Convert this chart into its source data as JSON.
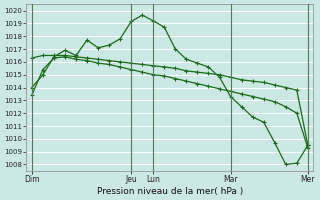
{
  "xlabel": "Pression niveau de la mer( hPa )",
  "bg_color": "#cce8e4",
  "grid_color": "#b0d8d4",
  "vline_color": "#557755",
  "line_color": "#1a6b1a",
  "ylim": [
    1007.5,
    1020.5
  ],
  "yticks": [
    1008,
    1009,
    1010,
    1011,
    1012,
    1013,
    1014,
    1015,
    1016,
    1017,
    1018,
    1019,
    1020
  ],
  "xtick_labels": [
    "Dim",
    "Jeu",
    "Lun",
    "Mar",
    "Mer"
  ],
  "xtick_positions": [
    0,
    9,
    11,
    18,
    25
  ],
  "vline_positions": [
    0,
    9,
    11,
    18,
    25
  ],
  "n_points": 26,
  "series1": [
    1014.0,
    1015.0,
    1016.4,
    1016.9,
    1016.5,
    1017.7,
    1017.1,
    1017.3,
    1017.8,
    1019.15,
    1019.65,
    1019.2,
    1018.7,
    1017.0,
    1016.2,
    1015.9,
    1015.6,
    1014.8,
    1013.3,
    1012.5,
    1011.7,
    1011.3,
    1009.7,
    1008.0,
    1008.1,
    1009.5
  ],
  "series2": [
    1016.3,
    1016.5,
    1016.5,
    1016.5,
    1016.4,
    1016.3,
    1016.2,
    1016.1,
    1016.0,
    1015.9,
    1015.8,
    1015.7,
    1015.6,
    1015.5,
    1015.3,
    1015.2,
    1015.1,
    1015.0,
    1014.8,
    1014.6,
    1014.5,
    1014.4,
    1014.2,
    1014.0,
    1013.8,
    1009.5
  ],
  "series3": [
    1013.4,
    1015.4,
    1016.3,
    1016.4,
    1016.2,
    1016.1,
    1015.9,
    1015.8,
    1015.6,
    1015.4,
    1015.2,
    1015.0,
    1014.9,
    1014.7,
    1014.5,
    1014.3,
    1014.1,
    1013.9,
    1013.7,
    1013.5,
    1013.3,
    1013.1,
    1012.9,
    1012.5,
    1012.0,
    1009.3
  ]
}
